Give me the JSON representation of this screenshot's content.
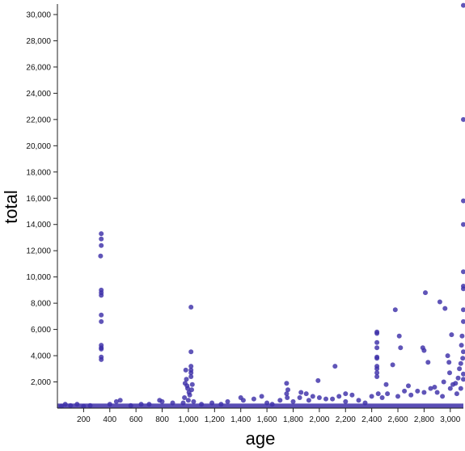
{
  "chart_data": {
    "type": "scatter",
    "xlabel": "age",
    "ylabel": "total",
    "xlim": [
      0,
      3100
    ],
    "ylim": [
      0,
      30800
    ],
    "x_ticks": [
      200,
      400,
      600,
      800,
      1000,
      1200,
      1400,
      1600,
      1800,
      2000,
      2200,
      2400,
      2600,
      2800,
      3000
    ],
    "y_ticks": [
      2000,
      4000,
      6000,
      8000,
      10000,
      12000,
      14000,
      16000,
      18000,
      20000,
      22000,
      24000,
      26000,
      28000,
      30000
    ],
    "grid": false,
    "legend": "none",
    "point_color": "#3d2fa8",
    "series": [
      {
        "points": [
          [
            335,
            13300
          ],
          [
            335,
            12900
          ],
          [
            335,
            12400
          ],
          [
            330,
            11600
          ],
          [
            335,
            9000
          ],
          [
            335,
            8800
          ],
          [
            335,
            8600
          ],
          [
            335,
            7100
          ],
          [
            335,
            6600
          ],
          [
            335,
            4800
          ],
          [
            335,
            4600
          ],
          [
            335,
            4500
          ],
          [
            335,
            3900
          ],
          [
            335,
            3700
          ],
          [
            1020,
            7700
          ],
          [
            1020,
            4300
          ],
          [
            1020,
            3200
          ],
          [
            1020,
            2900
          ],
          [
            1020,
            2700
          ],
          [
            1020,
            2400
          ],
          [
            980,
            2900
          ],
          [
            985,
            2200
          ],
          [
            975,
            1900
          ],
          [
            990,
            1700
          ],
          [
            995,
            1500
          ],
          [
            1005,
            1200
          ],
          [
            1010,
            1000
          ],
          [
            1030,
            1800
          ],
          [
            1025,
            1400
          ],
          [
            970,
            800
          ],
          [
            1000,
            600
          ],
          [
            1040,
            500
          ],
          [
            960,
            400
          ],
          [
            1750,
            1900
          ],
          [
            1760,
            1400
          ],
          [
            1750,
            1100
          ],
          [
            1755,
            800
          ],
          [
            1860,
            1200
          ],
          [
            1900,
            1100
          ],
          [
            1990,
            2100
          ],
          [
            2120,
            3200
          ],
          [
            2200,
            1100
          ],
          [
            2050,
            700
          ],
          [
            1950,
            900
          ],
          [
            2440,
            5800
          ],
          [
            2440,
            5700
          ],
          [
            2440,
            5000
          ],
          [
            2440,
            4600
          ],
          [
            2440,
            3900
          ],
          [
            2440,
            3800
          ],
          [
            2440,
            3200
          ],
          [
            2440,
            3000
          ],
          [
            2440,
            2700
          ],
          [
            2440,
            2400
          ],
          [
            2510,
            1800
          ],
          [
            2560,
            3300
          ],
          [
            2580,
            7500
          ],
          [
            2610,
            5500
          ],
          [
            2620,
            4600
          ],
          [
            2680,
            1700
          ],
          [
            2790,
            4600
          ],
          [
            2800,
            4400
          ],
          [
            2810,
            8800
          ],
          [
            2830,
            3500
          ],
          [
            2850,
            1500
          ],
          [
            2920,
            8100
          ],
          [
            2960,
            7600
          ],
          [
            2980,
            4000
          ],
          [
            2990,
            3500
          ],
          [
            3010,
            5600
          ],
          [
            2995,
            2700
          ],
          [
            3040,
            1900
          ],
          [
            3060,
            2300
          ],
          [
            3070,
            3000
          ],
          [
            3080,
            3400
          ],
          [
            3085,
            4800
          ],
          [
            3090,
            5500
          ],
          [
            3095,
            3800
          ],
          [
            3100,
            30700
          ],
          [
            3100,
            22000
          ],
          [
            3100,
            15800
          ],
          [
            3100,
            14000
          ],
          [
            3100,
            10400
          ],
          [
            3100,
            9300
          ],
          [
            3100,
            9100
          ],
          [
            3100,
            7500
          ],
          [
            3100,
            6600
          ],
          [
            3100,
            4300
          ],
          [
            3100,
            2600
          ],
          [
            3100,
            2200
          ],
          [
            2900,
            1200
          ],
          [
            2940,
            900
          ],
          [
            3000,
            1500
          ],
          [
            3050,
            1100
          ],
          [
            2700,
            1000
          ],
          [
            2750,
            1300
          ],
          [
            2600,
            900
          ],
          [
            2300,
            600
          ],
          [
            2350,
            400
          ],
          [
            2480,
            800
          ],
          [
            2520,
            1100
          ],
          [
            2200,
            500
          ],
          [
            1600,
            400
          ],
          [
            1640,
            300
          ],
          [
            1400,
            800
          ],
          [
            1420,
            600
          ],
          [
            1500,
            700
          ],
          [
            1560,
            900
          ],
          [
            1300,
            500
          ],
          [
            1250,
            300
          ],
          [
            1180,
            400
          ],
          [
            1100,
            300
          ],
          [
            880,
            400
          ],
          [
            780,
            600
          ],
          [
            800,
            500
          ],
          [
            700,
            300
          ],
          [
            640,
            300
          ],
          [
            560,
            200
          ],
          [
            480,
            600
          ],
          [
            450,
            500
          ],
          [
            400,
            300
          ],
          [
            250,
            200
          ],
          [
            150,
            300
          ],
          [
            100,
            200
          ],
          [
            60,
            300
          ],
          [
            30,
            150
          ],
          [
            200,
            150
          ],
          [
            1700,
            600
          ],
          [
            1800,
            500
          ],
          [
            1850,
            800
          ],
          [
            1920,
            600
          ],
          [
            2000,
            800
          ],
          [
            2100,
            700
          ],
          [
            2150,
            900
          ],
          [
            2250,
            1000
          ],
          [
            2400,
            900
          ],
          [
            2450,
            1100
          ],
          [
            2650,
            1300
          ],
          [
            2800,
            1200
          ],
          [
            2880,
            1600
          ],
          [
            2950,
            2000
          ],
          [
            3020,
            1800
          ],
          [
            3080,
            1500
          ]
        ]
      }
    ]
  }
}
